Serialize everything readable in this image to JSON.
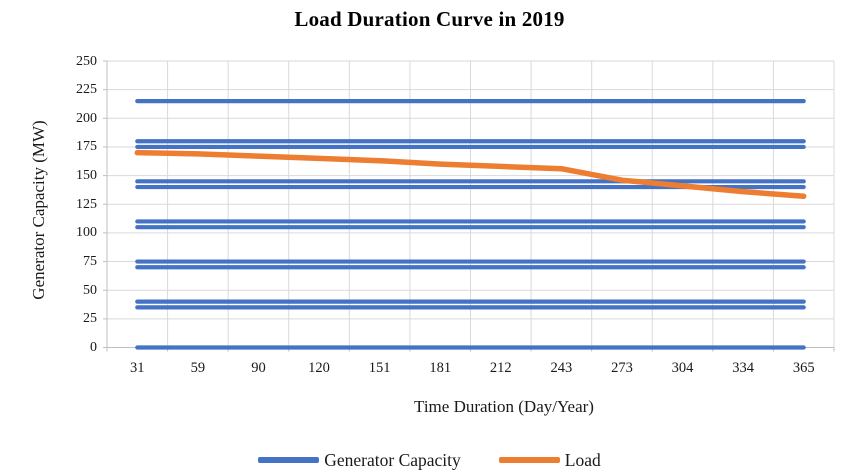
{
  "colors": {
    "generator_capacity": "#4472C4",
    "load": "#ED7D31",
    "gridline": "#D9D9D9",
    "axis_line": "#BFBFBF",
    "text": "#1a1a1a",
    "title_text": "#000000"
  },
  "legend": {
    "items": [
      {
        "label": "Generator Capacity",
        "color": "#4472C4"
      },
      {
        "label": "Load",
        "color": "#ED7D31"
      }
    ]
  },
  "chart_data": {
    "type": "line",
    "title": "Load Duration Curve in 2019",
    "xlabel": "Time Duration (Day/Year)",
    "ylabel": "Generator Capacity (MW)",
    "categories": [
      31,
      59,
      90,
      120,
      151,
      181,
      212,
      243,
      273,
      304,
      334,
      365
    ],
    "yticks": [
      0,
      25,
      50,
      75,
      100,
      125,
      150,
      175,
      200,
      225,
      250
    ],
    "ylim": [
      0,
      250
    ],
    "grid": true,
    "legend_position": "bottom",
    "series": [
      {
        "name": "Generator Capacity",
        "style": "horizontal-lines",
        "color": "#4472C4",
        "levels": [
          215,
          180,
          175,
          145,
          140,
          110,
          105,
          75,
          70,
          40,
          35,
          0
        ]
      },
      {
        "name": "Load",
        "style": "line",
        "color": "#ED7D31",
        "values": [
          170,
          169,
          167,
          165,
          163,
          160,
          158,
          156,
          146,
          141,
          136,
          132
        ]
      }
    ]
  }
}
